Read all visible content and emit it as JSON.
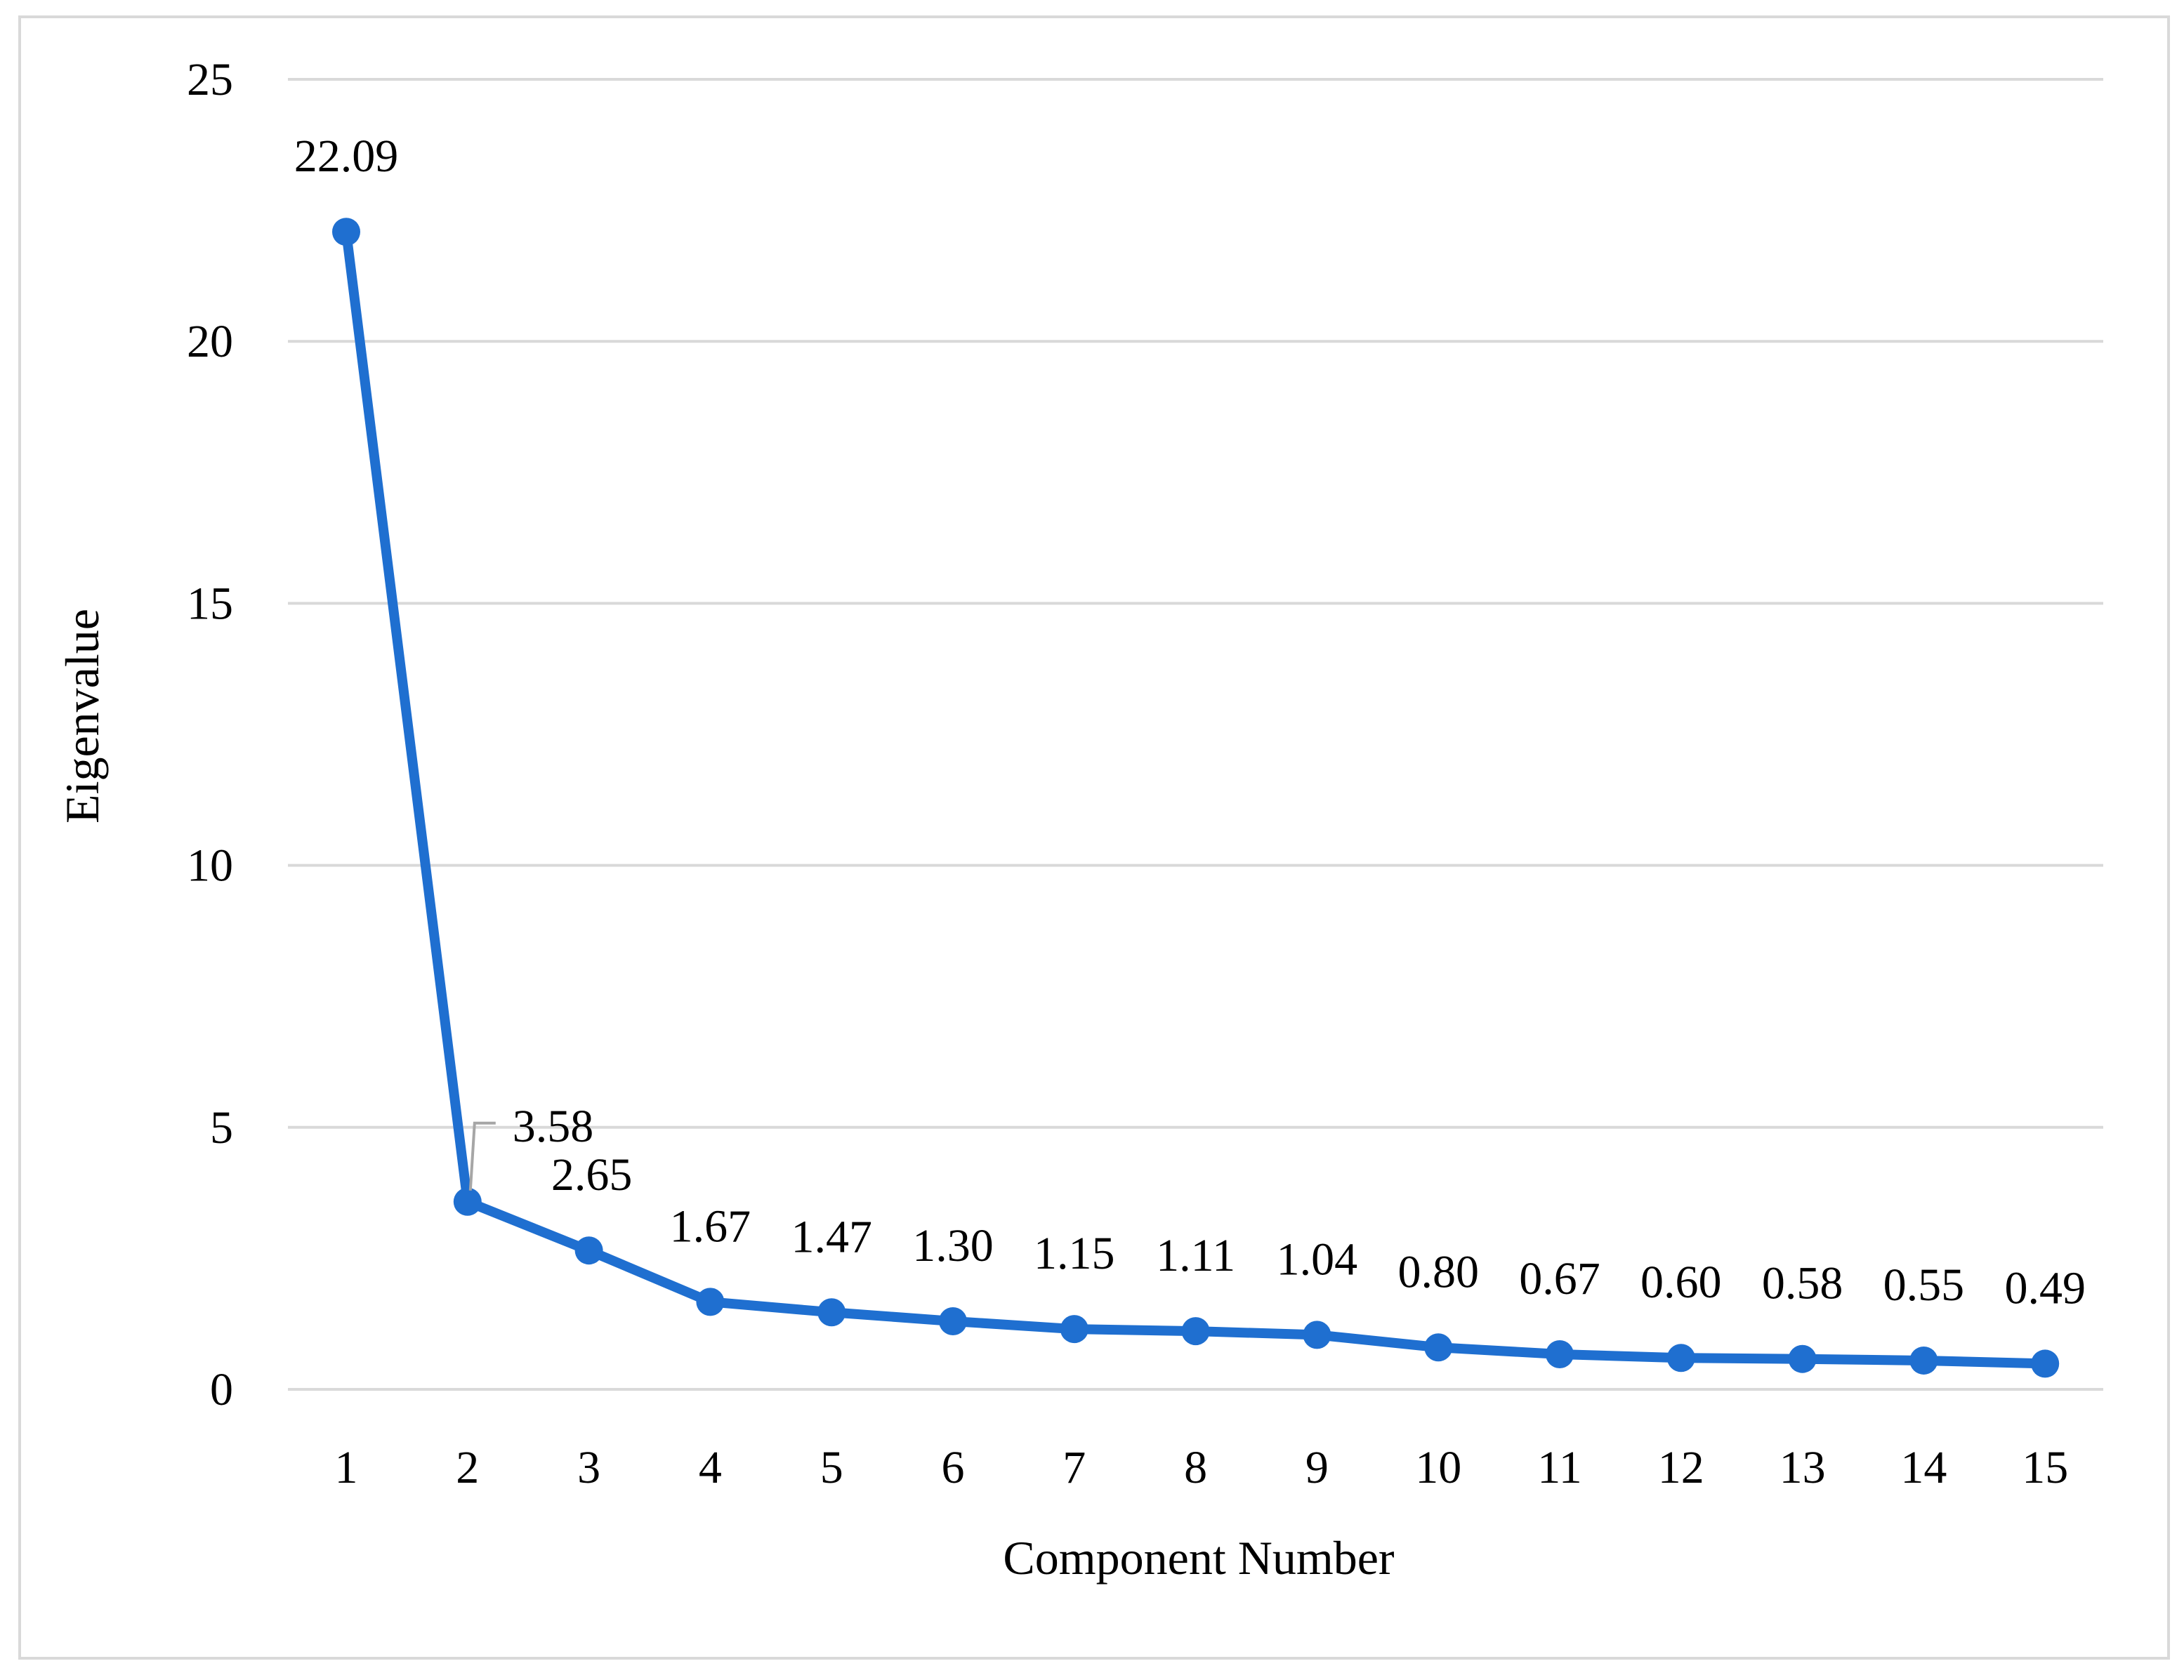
{
  "chart_data": {
    "type": "line",
    "title": "",
    "xlabel": "Component Number",
    "ylabel": "Eigenvalue",
    "x": [
      1,
      2,
      3,
      4,
      5,
      6,
      7,
      8,
      9,
      10,
      11,
      12,
      13,
      14,
      15
    ],
    "x_tick_labels": [
      "1",
      "2",
      "3",
      "4",
      "5",
      "6",
      "7",
      "8",
      "9",
      "10",
      "11",
      "12",
      "13",
      "14",
      "15"
    ],
    "series": [
      {
        "values": [
          22.09,
          3.58,
          2.65,
          1.67,
          1.47,
          1.3,
          1.15,
          1.11,
          1.04,
          0.8,
          0.67,
          0.6,
          0.58,
          0.55,
          0.49
        ],
        "data_labels": [
          "22.09",
          "3.58",
          "2.65",
          "1.67",
          "1.47",
          "1.30",
          "1.15",
          "1.11",
          "1.04",
          "0.80",
          "0.67",
          "0.60",
          "0.58",
          "0.55",
          "0.49"
        ],
        "color": "#1f6fd0"
      }
    ],
    "ylim": [
      0,
      25
    ],
    "y_ticks": [
      0,
      5,
      10,
      15,
      20,
      25
    ],
    "y_tick_labels": [
      "0",
      "5",
      "10",
      "15",
      "20",
      "25"
    ],
    "grid": "horizontal",
    "legend": "none",
    "colors": {
      "line": "#1f6fd0",
      "grid": "#d9d9d9",
      "frame": "#d9d9d9",
      "leader": "#a6a6a6"
    }
  }
}
